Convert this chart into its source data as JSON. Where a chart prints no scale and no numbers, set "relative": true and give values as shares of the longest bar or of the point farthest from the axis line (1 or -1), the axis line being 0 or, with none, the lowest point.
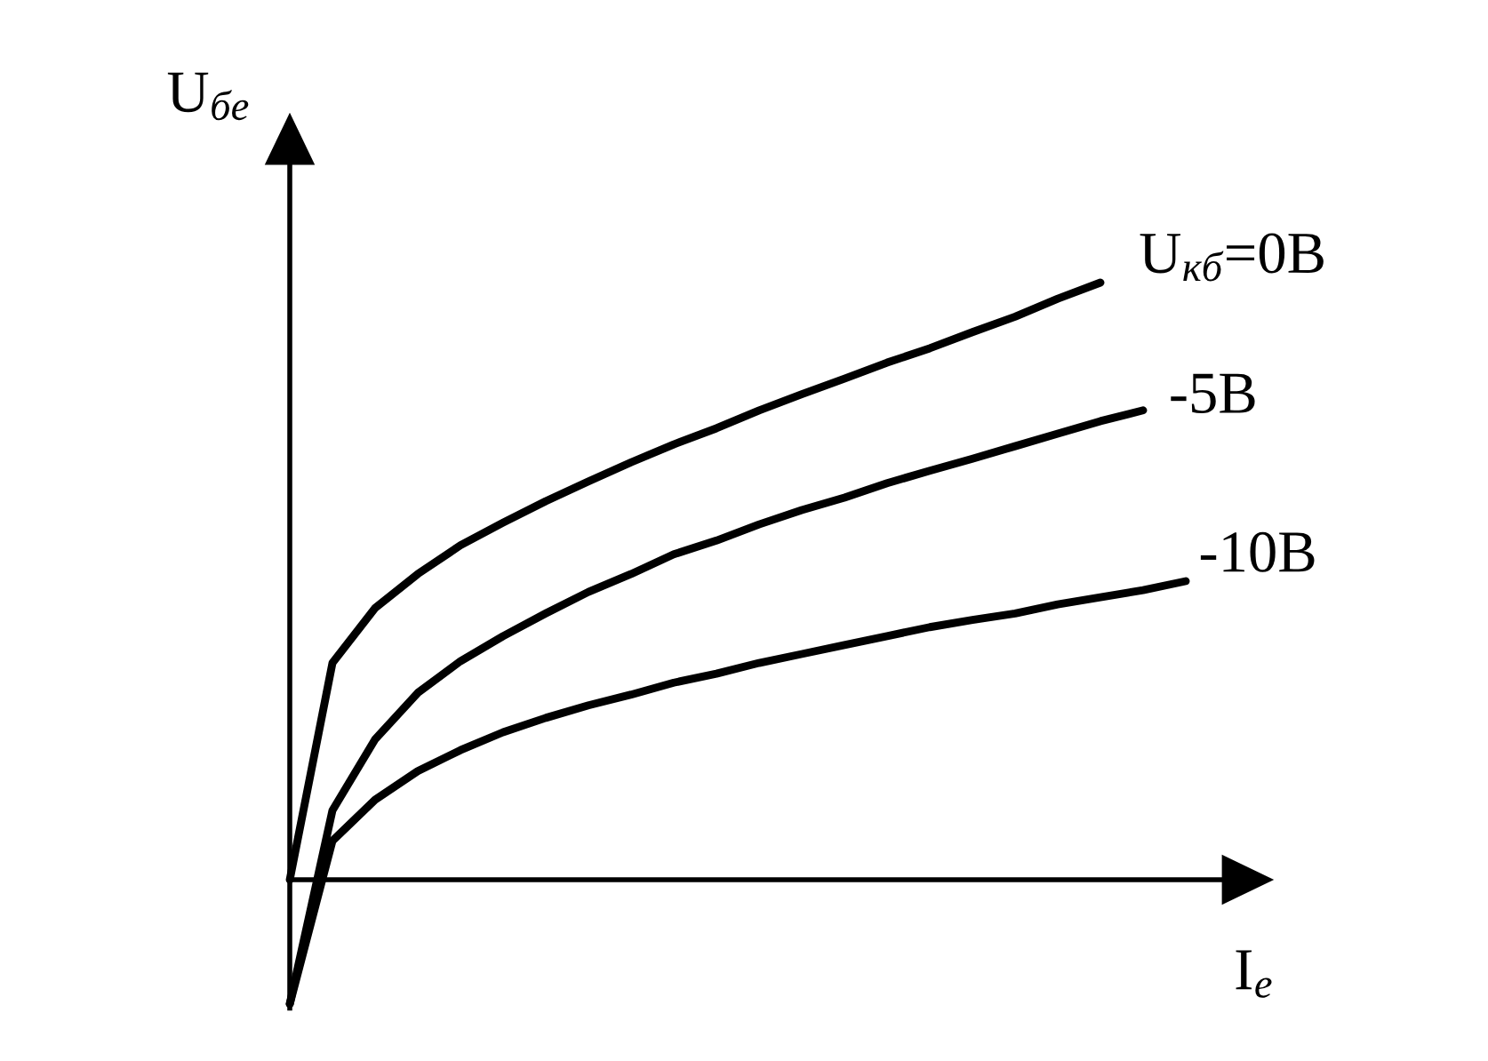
{
  "chart_data": {
    "type": "line",
    "relative": true,
    "xlabel": "I$_{е}$",
    "ylabel": "U$_{бе}$",
    "legend": false,
    "marker": "none",
    "line_style": "solid",
    "categories": [
      null,
      null,
      null,
      null,
      null,
      null,
      null,
      null,
      null,
      null,
      null,
      null,
      null,
      null,
      null,
      null,
      null,
      null,
      null,
      null,
      null,
      null
    ],
    "series": [
      {
        "name": "U$_{кб}$=0В",
        "color": "#000000",
        "values": [
          0,
          0.363,
          0.455,
          0.512,
          0.56,
          0.598,
          0.634,
          0.667,
          0.699,
          0.729,
          0.756,
          0.786,
          0.813,
          0.839,
          0.866,
          0.89,
          0.917,
          0.943,
          0.973,
          1.0,
          null,
          null
        ]
      },
      {
        "name": "-5В",
        "color": "#000000",
        "values": [
          -0.208,
          0.116,
          0.235,
          0.313,
          0.366,
          0.408,
          0.446,
          0.482,
          0.512,
          0.545,
          0.568,
          0.595,
          0.619,
          0.64,
          0.664,
          0.685,
          0.705,
          0.726,
          0.747,
          0.768,
          0.786,
          null
        ]
      },
      {
        "name": "-10В",
        "color": "#000000",
        "values": [
          -0.208,
          0.065,
          0.134,
          0.182,
          0.217,
          0.247,
          0.271,
          0.292,
          0.31,
          0.33,
          0.345,
          0.363,
          0.378,
          0.393,
          0.408,
          0.423,
          0.435,
          0.446,
          0.461,
          0.473,
          0.485,
          0.5
        ]
      }
    ]
  }
}
